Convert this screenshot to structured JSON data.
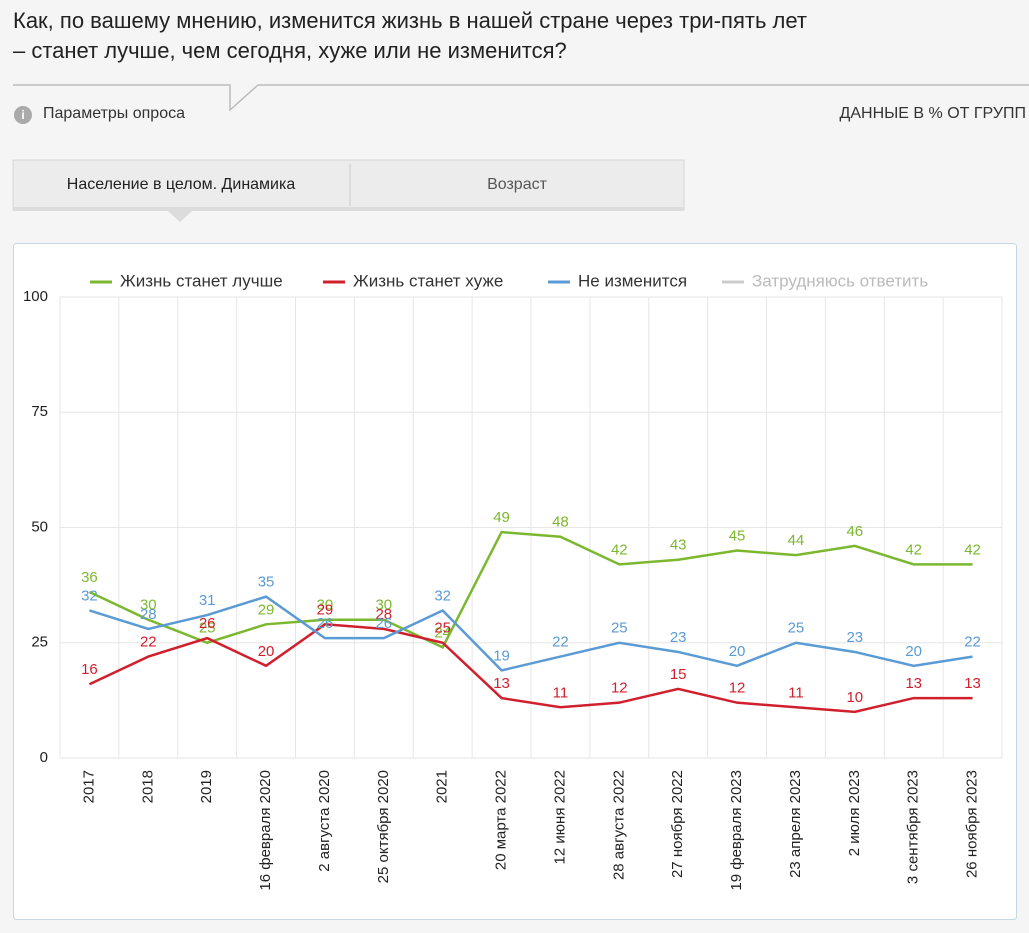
{
  "header": {
    "title_lines": [
      "Как, по вашему мнению, изменится жизнь в нашей стране через три-пять лет",
      "– станет лучше, чем сегодня, хуже или не изменится?"
    ],
    "params": "Параметры опроса",
    "note": "ДАННЫЕ В % ОТ ГРУПП"
  },
  "tabs": [
    "Население в целом. Динамика",
    "Возраст"
  ],
  "chart_data": {
    "type": "line",
    "categories": [
      "2017",
      "2018",
      "2019",
      "16 февраля 2020",
      "2 августа 2020",
      "25 октября 2020",
      "2021",
      "20 марта 2022",
      "12 июня 2022",
      "28 августа 2022",
      "27 ноября 2022",
      "19 февраля 2023",
      "23 апреля 2023",
      "2 июля 2023",
      "3 сентября 2023",
      "26 ноября 2023"
    ],
    "series": [
      {
        "name": "Жизнь станет лучше",
        "color": "#7cb82f",
        "values": [
          36,
          30,
          25,
          29,
          30,
          30,
          24,
          49,
          48,
          42,
          43,
          45,
          44,
          46,
          42,
          42
        ]
      },
      {
        "name": "Жизнь станет хуже",
        "color": "#d0202e",
        "values": [
          16,
          22,
          26,
          20,
          29,
          28,
          25,
          13,
          11,
          12,
          15,
          12,
          11,
          10,
          13,
          13
        ]
      },
      {
        "name": "Не изменится",
        "color": "#5b9bd5",
        "values": [
          32,
          28,
          31,
          35,
          26,
          26,
          32,
          19,
          22,
          25,
          23,
          20,
          25,
          23,
          20,
          22
        ]
      },
      {
        "name": "Затрудняюсь ответить",
        "color": "#cccccc",
        "visible": false
      }
    ],
    "ylim": [
      0,
      100
    ],
    "yticks": [
      0,
      25,
      50,
      75,
      100
    ],
    "grid": true
  }
}
